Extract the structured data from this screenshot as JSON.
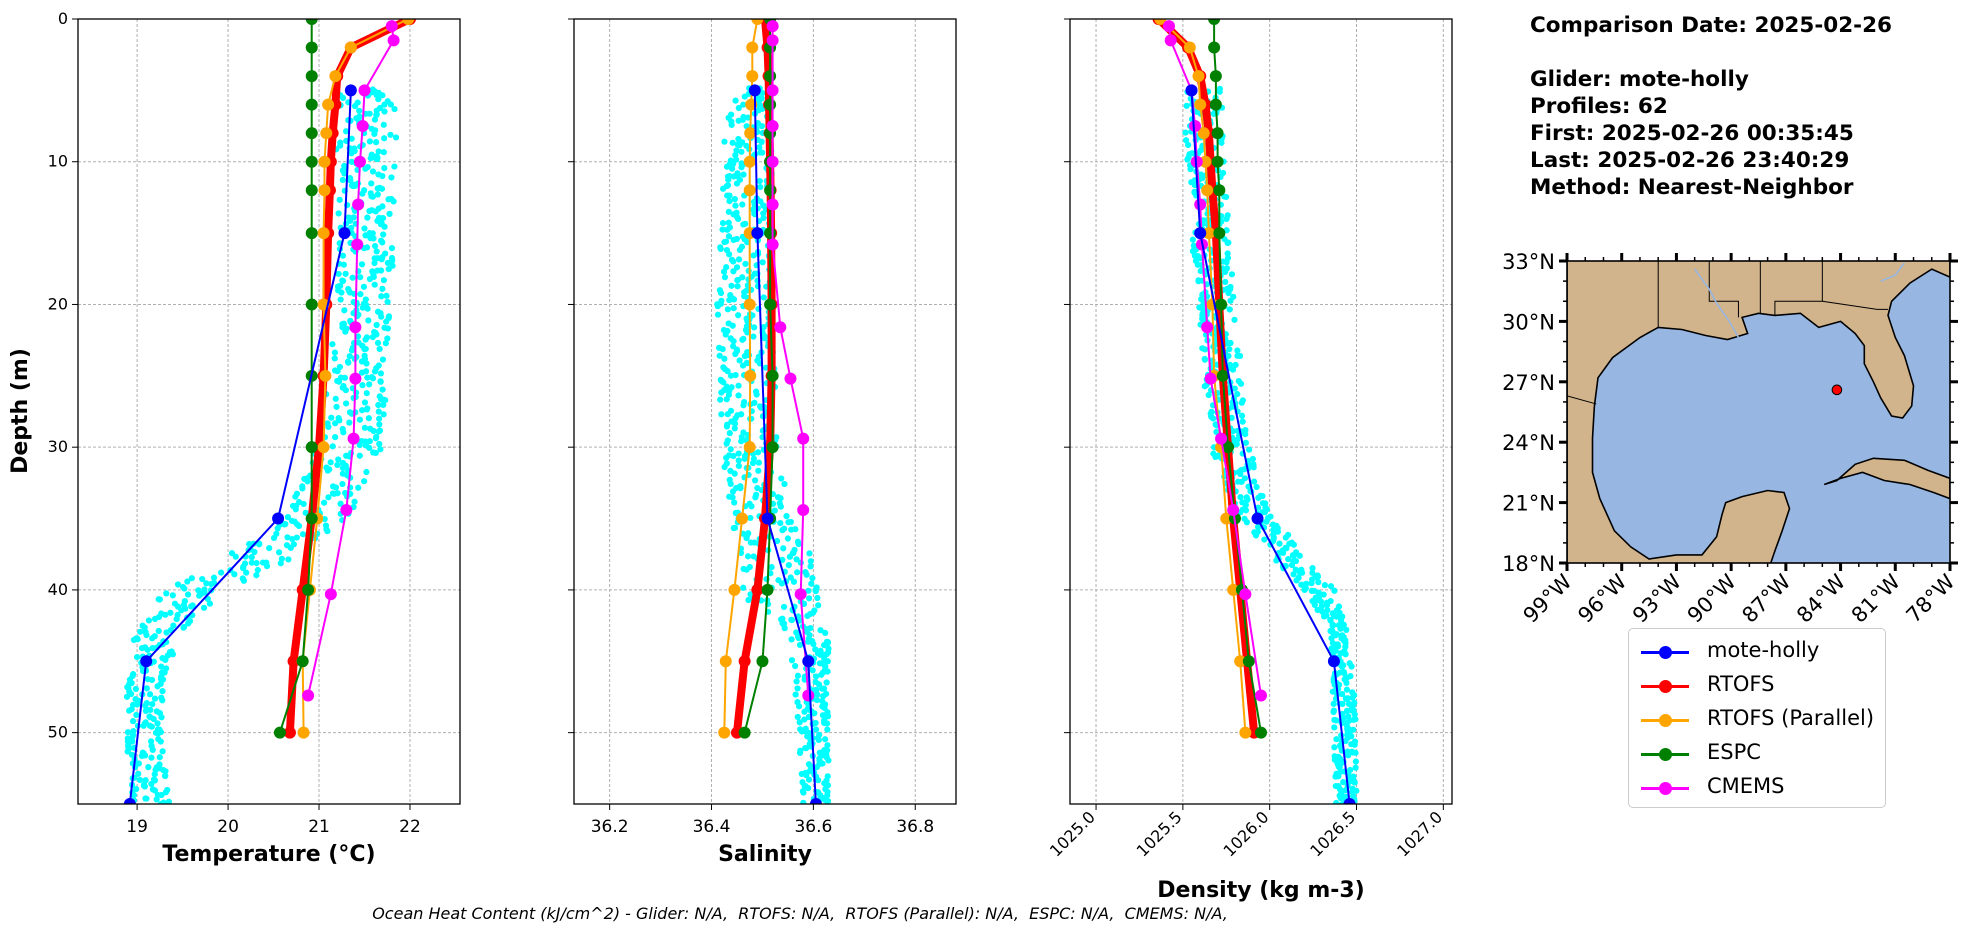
{
  "info": {
    "comparison_date": "Comparison Date: 2025-02-26",
    "glider": "Glider: mote-holly",
    "profiles": "Profiles: 62",
    "first": "First: 2025-02-26 00:35:45",
    "last": "Last: 2025-02-26 23:40:29",
    "method": "Method: Nearest-Neighbor"
  },
  "footer": "Ocean Heat Content (kJ/cm^2) - Glider: N/A,  RTOFS: N/A,  RTOFS (Parallel): N/A,  ESPC: N/A,  CMEMS: N/A,",
  "legend": [
    {
      "label": "mote-holly",
      "color": "#0000ff"
    },
    {
      "label": "RTOFS",
      "color": "#ff0000"
    },
    {
      "label": "RTOFS (Parallel)",
      "color": "#ffa500"
    },
    {
      "label": "ESPC",
      "color": "#008000"
    },
    {
      "label": "CMEMS",
      "color": "#ff00ff"
    }
  ],
  "colors": {
    "scatter": "#00ffff",
    "land": "#d2b48c",
    "ocean": "#97b6e1"
  },
  "chart_data": [
    {
      "type": "line",
      "xlabel": "Temperature (°C)",
      "ylabel": "Depth (m)",
      "xlim": [
        18.35,
        22.55
      ],
      "ylim": [
        55,
        0
      ],
      "xticks": [
        19,
        20,
        21,
        22
      ],
      "yticks": [
        0,
        10,
        20,
        30,
        40,
        50
      ],
      "grid": true,
      "depths": [
        0,
        2,
        4,
        6,
        8,
        10,
        12,
        15,
        20,
        25,
        30,
        35,
        40,
        45,
        50
      ],
      "series": [
        {
          "name": "mote-holly",
          "depth": [
            5,
            15,
            35,
            45,
            55
          ],
          "values": [
            21.35,
            21.28,
            20.55,
            19.1,
            18.92
          ]
        },
        {
          "name": "RTOFS",
          "values": [
            22.0,
            21.35,
            21.2,
            21.18,
            21.15,
            21.13,
            21.12,
            21.1,
            21.08,
            21.05,
            21.0,
            20.92,
            20.82,
            20.72,
            20.68
          ]
        },
        {
          "name": "RTOFS (Parallel)",
          "values": [
            21.98,
            21.35,
            21.18,
            21.1,
            21.08,
            21.06,
            21.06,
            21.05,
            21.05,
            21.07,
            21.05,
            20.98,
            20.9,
            20.82,
            20.83
          ]
        },
        {
          "name": "ESPC",
          "values": [
            20.92,
            20.92,
            20.92,
            20.92,
            20.92,
            20.92,
            20.92,
            20.92,
            20.92,
            20.92,
            20.92,
            20.92,
            20.88,
            20.82,
            20.57
          ]
        },
        {
          "name": "CMEMS",
          "depth": [
            0.5,
            1.5,
            5.0,
            7.5,
            10.0,
            13.0,
            15.8,
            21.6,
            25.2,
            29.4,
            34.4,
            40.3,
            47.4
          ],
          "values": [
            21.8,
            21.82,
            21.5,
            21.48,
            21.45,
            21.43,
            21.42,
            21.4,
            21.4,
            21.38,
            21.3,
            21.13,
            20.88
          ]
        }
      ],
      "glider_band": {
        "depth": [
          5,
          10,
          20,
          30,
          34,
          37,
          40,
          43,
          46,
          50,
          53,
          55
        ],
        "min": [
          21.1,
          21.2,
          21.2,
          21.0,
          20.7,
          20.2,
          19.3,
          18.98,
          18.88,
          18.88,
          18.9,
          18.92
        ],
        "max": [
          21.85,
          21.85,
          21.8,
          21.7,
          21.5,
          20.9,
          20.0,
          19.5,
          19.3,
          19.3,
          19.32,
          19.35
        ]
      }
    },
    {
      "type": "line",
      "xlabel": "Salinity",
      "xlim": [
        36.13,
        36.88
      ],
      "ylim": [
        55,
        0
      ],
      "xticks": [
        36.2,
        36.4,
        36.6,
        36.8
      ],
      "grid": true,
      "depths": [
        0,
        2,
        4,
        6,
        8,
        10,
        12,
        15,
        20,
        25,
        30,
        35,
        40,
        45,
        50
      ],
      "series": [
        {
          "name": "mote-holly",
          "depth": [
            5,
            15,
            35,
            45,
            55
          ],
          "values": [
            36.485,
            36.49,
            36.51,
            36.59,
            36.605
          ]
        },
        {
          "name": "RTOFS",
          "values": [
            36.505,
            36.51,
            36.512,
            36.513,
            36.514,
            36.515,
            36.516,
            36.517,
            36.518,
            36.518,
            36.515,
            36.505,
            36.49,
            36.465,
            36.45
          ]
        },
        {
          "name": "RTOFS (Parallel)",
          "values": [
            36.49,
            36.48,
            36.48,
            36.478,
            36.476,
            36.475,
            36.475,
            36.475,
            36.475,
            36.476,
            36.475,
            36.46,
            36.445,
            36.428,
            36.425
          ]
        },
        {
          "name": "ESPC",
          "values": [
            36.515,
            36.515,
            36.515,
            36.515,
            36.515,
            36.515,
            36.515,
            36.515,
            36.515,
            36.52,
            36.52,
            36.515,
            36.51,
            36.5,
            36.465
          ]
        },
        {
          "name": "CMEMS",
          "depth": [
            0.5,
            1.5,
            5.0,
            7.5,
            10.0,
            13.0,
            15.8,
            21.6,
            25.2,
            29.4,
            34.4,
            40.3,
            47.4
          ],
          "values": [
            36.52,
            36.52,
            36.52,
            36.52,
            36.52,
            36.52,
            36.52,
            36.535,
            36.555,
            36.58,
            36.58,
            36.575,
            36.59
          ]
        }
      ],
      "glider_band": {
        "depth": [
          5,
          10,
          20,
          30,
          35,
          38,
          40,
          43,
          46,
          50,
          55
        ],
        "min": [
          36.44,
          36.42,
          36.41,
          36.42,
          36.44,
          36.45,
          36.45,
          36.55,
          36.56,
          36.57,
          36.58
        ],
        "max": [
          36.51,
          36.52,
          36.52,
          36.53,
          36.56,
          36.6,
          36.61,
          36.63,
          36.63,
          36.63,
          36.63
        ]
      }
    },
    {
      "type": "line",
      "xlabel": "Density (kg m-3)",
      "xlim": [
        1024.85,
        1027.05
      ],
      "ylim": [
        55,
        0
      ],
      "xticks": [
        1025.0,
        1025.5,
        1026.0,
        1026.5,
        1027.0
      ],
      "xticklabels": [
        "1025.0",
        "1025.5",
        "1026.0",
        "1026.5",
        "1027.0"
      ],
      "grid": true,
      "depths": [
        0,
        2,
        4,
        6,
        8,
        10,
        12,
        15,
        20,
        25,
        30,
        35,
        40,
        45,
        50
      ],
      "series": [
        {
          "name": "mote-holly",
          "depth": [
            5,
            15,
            35,
            45,
            55
          ],
          "values": [
            1025.55,
            1025.6,
            1025.93,
            1026.37,
            1026.46
          ]
        },
        {
          "name": "RTOFS",
          "values": [
            1025.36,
            1025.53,
            1025.6,
            1025.63,
            1025.65,
            1025.66,
            1025.67,
            1025.69,
            1025.71,
            1025.73,
            1025.76,
            1025.79,
            1025.83,
            1025.87,
            1025.91
          ]
        },
        {
          "name": "RTOFS (Parallel)",
          "values": [
            1025.37,
            1025.54,
            1025.59,
            1025.6,
            1025.62,
            1025.63,
            1025.64,
            1025.65,
            1025.67,
            1025.68,
            1025.72,
            1025.75,
            1025.79,
            1025.83,
            1025.86
          ]
        },
        {
          "name": "ESPC",
          "values": [
            1025.68,
            1025.68,
            1025.69,
            1025.69,
            1025.7,
            1025.7,
            1025.71,
            1025.71,
            1025.72,
            1025.73,
            1025.76,
            1025.8,
            1025.84,
            1025.88,
            1025.95
          ]
        },
        {
          "name": "CMEMS",
          "depth": [
            0.5,
            1.5,
            5.0,
            7.5,
            10.0,
            13.0,
            15.8,
            21.6,
            25.2,
            29.4,
            34.4,
            40.3,
            47.4
          ],
          "values": [
            1025.42,
            1025.43,
            1025.55,
            1025.57,
            1025.58,
            1025.6,
            1025.61,
            1025.64,
            1025.66,
            1025.72,
            1025.79,
            1025.86,
            1025.95
          ]
        }
      ],
      "glider_band": {
        "depth": [
          5,
          10,
          20,
          30,
          34,
          37,
          40,
          43,
          46,
          50,
          55
        ],
        "min": [
          1025.5,
          1025.52,
          1025.58,
          1025.66,
          1025.78,
          1025.95,
          1026.2,
          1026.35,
          1026.36,
          1026.37,
          1026.38
        ],
        "max": [
          1025.72,
          1025.74,
          1025.8,
          1025.88,
          1025.98,
          1026.15,
          1026.38,
          1026.45,
          1026.48,
          1026.5,
          1026.5
        ]
      }
    },
    {
      "type": "map",
      "lon_ticks": [
        "99°W",
        "96°W",
        "93°W",
        "90°W",
        "87°W",
        "84°W",
        "81°W",
        "78°W"
      ],
      "lat_ticks": [
        "33°N",
        "30°N",
        "27°N",
        "24°N",
        "21°N",
        "18°N"
      ],
      "extent": {
        "lon": [
          -99,
          -78
        ],
        "lat": [
          18,
          33
        ]
      },
      "glider_position": {
        "lon": -84.2,
        "lat": 26.6
      }
    }
  ]
}
